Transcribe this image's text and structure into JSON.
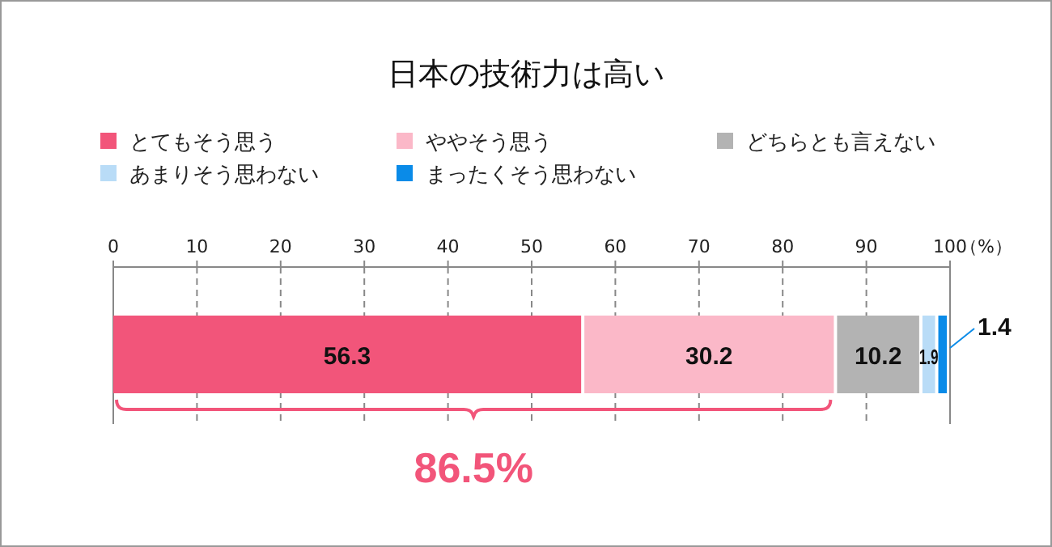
{
  "chart_data": {
    "type": "bar",
    "orientation": "horizontal",
    "stacked": true,
    "title": "日本の技術力は高い",
    "xlabel": "（%）",
    "categories": [
      null
    ],
    "series": [
      {
        "name": "とてもそう思う",
        "color": "#f2557a",
        "values": [
          56.3
        ]
      },
      {
        "name": "ややそう思う",
        "color": "#fbb8c8",
        "values": [
          30.2
        ]
      },
      {
        "name": "どちらとも言えない",
        "color": "#b3b3b3",
        "values": [
          10.2
        ]
      },
      {
        "name": "あまりそう思わない",
        "color": "#b9dcf7",
        "values": [
          1.9
        ]
      },
      {
        "name": "まったくそう思わない",
        "color": "#0a8be8",
        "values": [
          1.4
        ]
      }
    ],
    "xlim": [
      0,
      100
    ],
    "xticks": [
      0,
      10,
      20,
      30,
      40,
      50,
      60,
      70,
      80,
      90,
      100
    ],
    "grid": "x",
    "legend": "top",
    "data_labels": true,
    "annotations": [
      "86.5%"
    ]
  }
}
